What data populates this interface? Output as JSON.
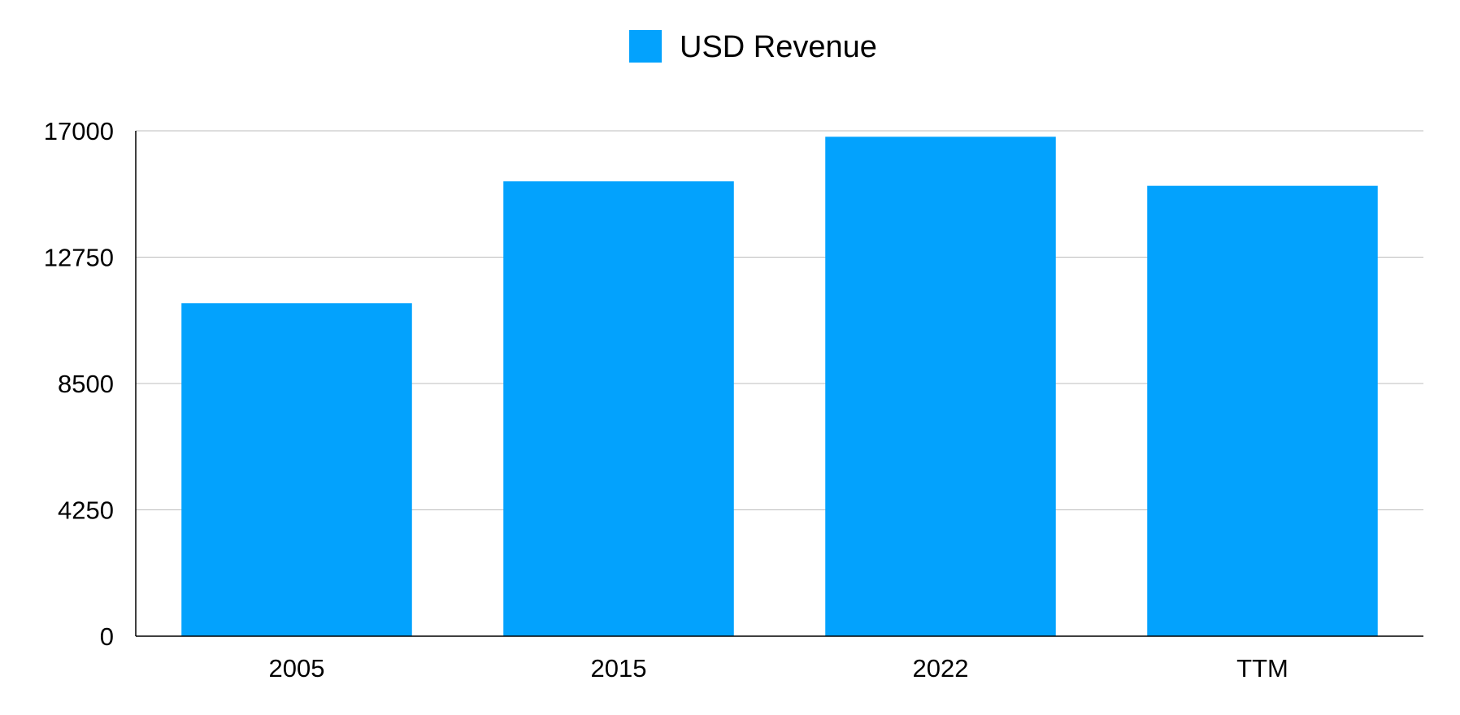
{
  "chart_data": {
    "type": "bar",
    "categories": [
      "2005",
      "2015",
      "2022",
      "TTM"
    ],
    "series": [
      {
        "name": "USD Revenue",
        "values": [
          11200,
          15300,
          16800,
          15150
        ],
        "color": "#03A2FD"
      }
    ],
    "y_ticks": [
      "0",
      "4250",
      "8500",
      "12750",
      "17000"
    ],
    "ylim": [
      0,
      17000
    ],
    "grid": true,
    "legend": "top-center"
  }
}
